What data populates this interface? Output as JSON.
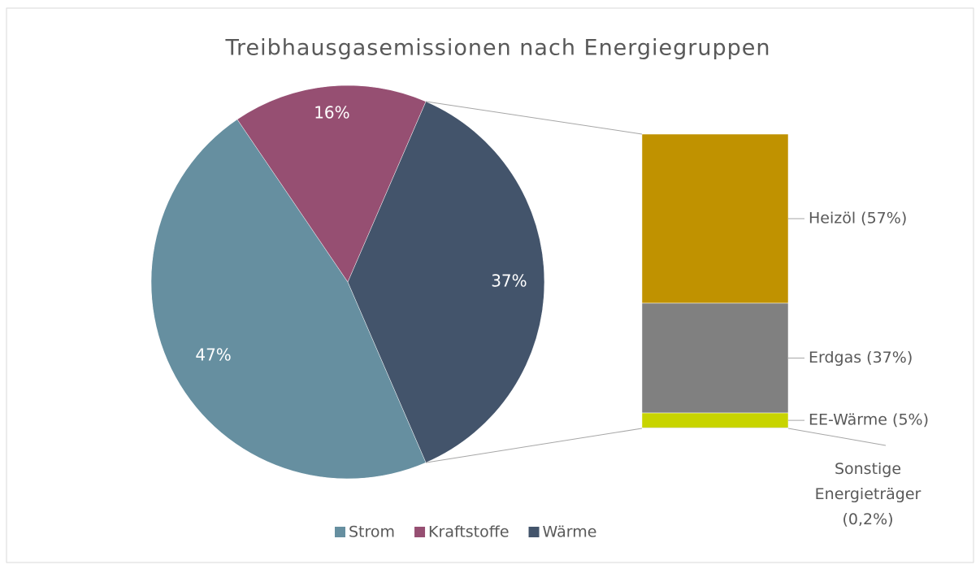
{
  "chart_data": {
    "type": "pie-of-bar",
    "title": "Treibhausgasemissionen nach Energiegruppen",
    "categories": [
      "Strom",
      "Kraftstoffe",
      "Wärme"
    ],
    "values": [
      47,
      16,
      37
    ],
    "value_labels": [
      "47%",
      "16%",
      "37%"
    ],
    "colors": [
      "#668fa0",
      "#964f72",
      "#43546b"
    ],
    "breakdown": {
      "values": [
        57,
        37,
        5,
        0.2
      ],
      "value_labels": [
        "Heizöl (57%)",
        "Erdgas (37%)",
        "EE-Wärme (5%)",
        "Sonstige Energieträger (0,2%)"
      ],
      "colors": [
        "#c09200",
        "#808080",
        "#c8d400",
        "#a0a0a0"
      ]
    },
    "legend": "bottom"
  }
}
